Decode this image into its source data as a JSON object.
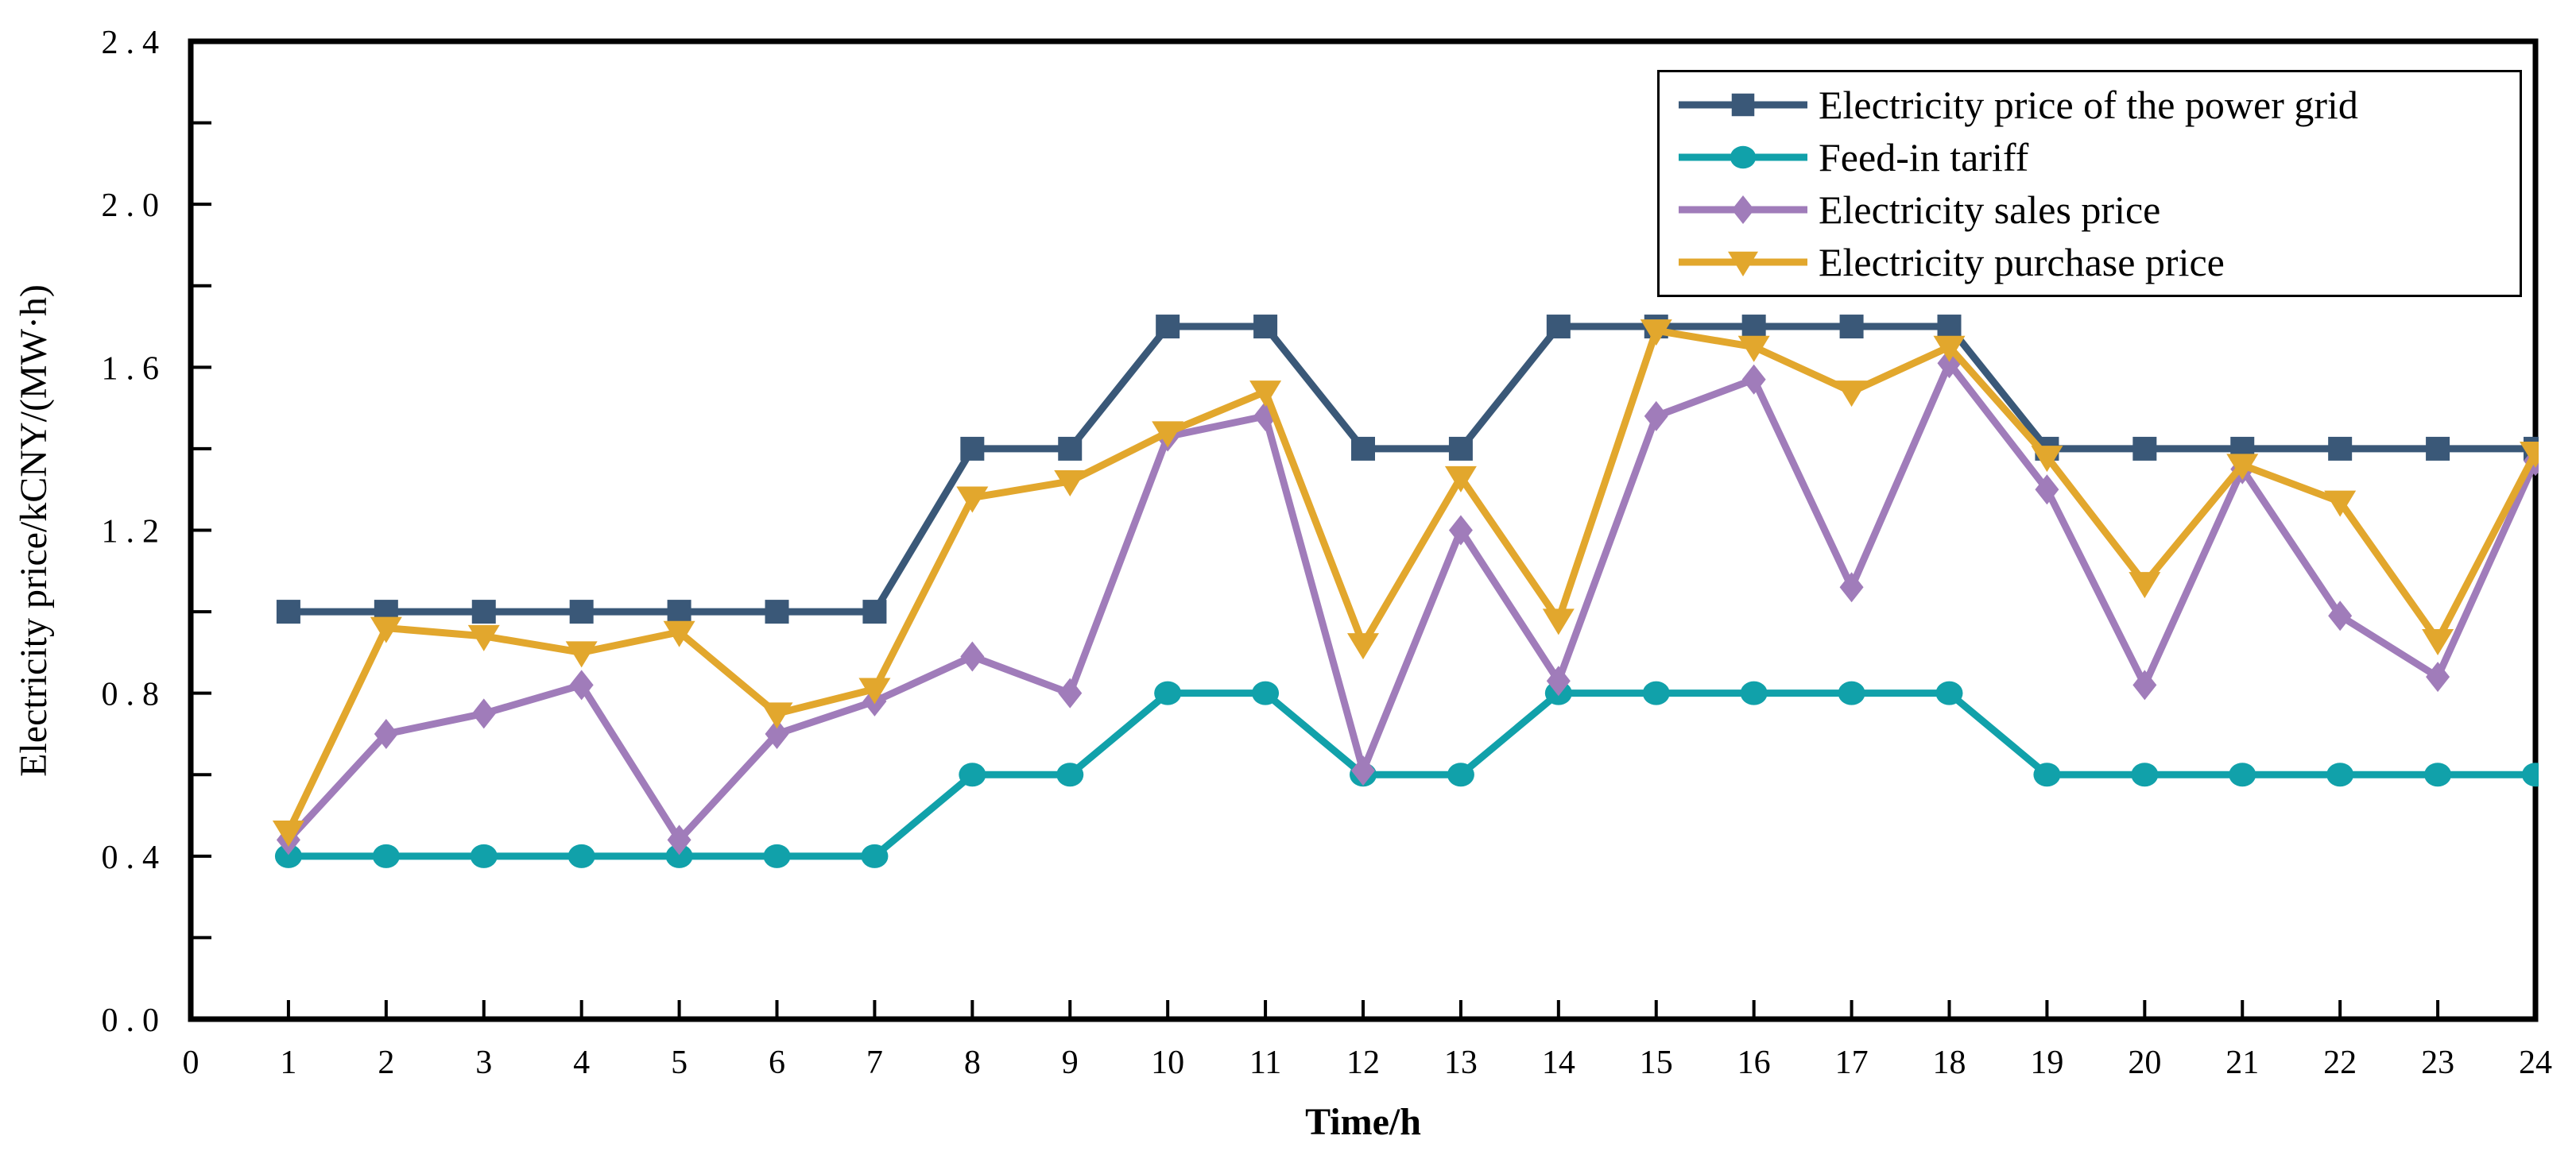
{
  "figure": {
    "background": "#ffffff",
    "frame_color": "#000000"
  },
  "chart_data": {
    "type": "line",
    "title": "",
    "xlabel": "Time/h",
    "ylabel": "Electricity price/kCNY/(MW·h)",
    "xlim": [
      0,
      24
    ],
    "ylim": [
      0,
      2.4
    ],
    "x_ticks": [
      0,
      1,
      2,
      3,
      4,
      5,
      6,
      7,
      8,
      9,
      10,
      11,
      12,
      13,
      14,
      15,
      16,
      17,
      18,
      19,
      20,
      21,
      22,
      23,
      24
    ],
    "y_ticks_major": [
      0.0,
      0.4,
      0.8,
      1.2,
      1.6,
      2.0,
      2.4
    ],
    "y_tick_minor_step": 0.2,
    "grid": false,
    "legend_position": "top-right",
    "x": [
      1,
      2,
      3,
      4,
      5,
      6,
      7,
      8,
      9,
      10,
      11,
      12,
      13,
      14,
      15,
      16,
      17,
      18,
      19,
      20,
      21,
      22,
      23,
      24
    ],
    "series": [
      {
        "name": "Electricity price of the power grid",
        "color": "#3A5878",
        "marker": "square",
        "values": [
          1.0,
          1.0,
          1.0,
          1.0,
          1.0,
          1.0,
          1.0,
          1.4,
          1.4,
          1.7,
          1.7,
          1.4,
          1.4,
          1.7,
          1.7,
          1.7,
          1.7,
          1.7,
          1.4,
          1.4,
          1.4,
          1.4,
          1.4,
          1.4
        ]
      },
      {
        "name": "Feed-in tariff",
        "color": "#11A1AA",
        "marker": "circle",
        "values": [
          0.4,
          0.4,
          0.4,
          0.4,
          0.4,
          0.4,
          0.4,
          0.6,
          0.6,
          0.8,
          0.8,
          0.6,
          0.6,
          0.8,
          0.8,
          0.8,
          0.8,
          0.8,
          0.6,
          0.6,
          0.6,
          0.6,
          0.6,
          0.6
        ]
      },
      {
        "name": "Electricity sales price",
        "color": "#A07CBA",
        "marker": "diamond",
        "values": [
          0.44,
          0.7,
          0.75,
          0.82,
          0.44,
          0.7,
          0.78,
          0.89,
          0.8,
          1.43,
          1.48,
          0.61,
          1.2,
          0.83,
          1.48,
          1.57,
          1.06,
          1.61,
          1.3,
          0.82,
          1.35,
          0.99,
          0.84,
          1.37
        ]
      },
      {
        "name": "Electricity purchase price",
        "color": "#E2A72D",
        "marker": "triangle-down",
        "values": [
          0.46,
          0.96,
          0.94,
          0.9,
          0.95,
          0.75,
          0.81,
          1.28,
          1.32,
          1.44,
          1.54,
          0.92,
          1.33,
          0.98,
          1.69,
          1.65,
          1.54,
          1.65,
          1.38,
          1.07,
          1.36,
          1.27,
          0.93,
          1.39
        ]
      }
    ]
  }
}
